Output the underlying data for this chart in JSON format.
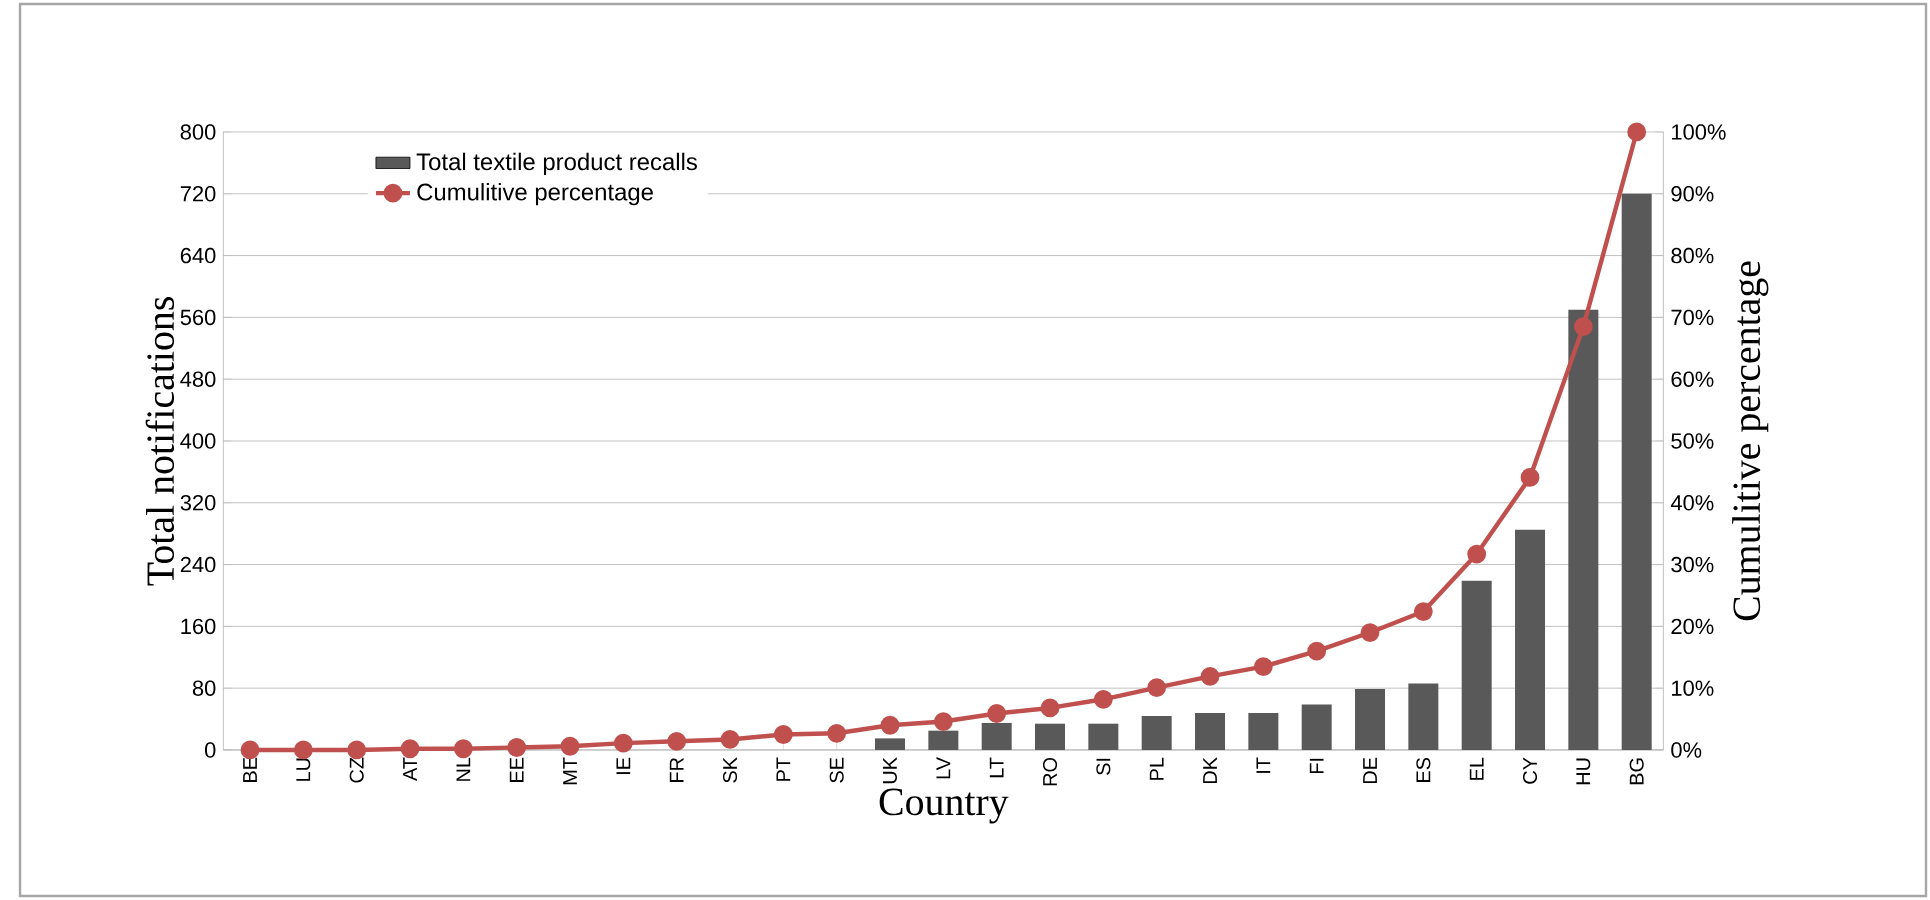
{
  "chart_data": {
    "type": "bar",
    "xlabel": "Country",
    "ylabel": "Total notifications",
    "y2label": "Cumulitive percentage",
    "categories": [
      "BE",
      "LU",
      "CZ",
      "AT",
      "NL",
      "EE",
      "MT",
      "IE",
      "FR",
      "SK",
      "PT",
      "SE",
      "UK",
      "LV",
      "LT",
      "RO",
      "SI",
      "PL",
      "DK",
      "IT",
      "FI",
      "DE",
      "ES",
      "EL",
      "CY",
      "HU",
      "BG"
    ],
    "series": [
      {
        "name": "Total textile product recalls",
        "color": "#595959",
        "values": [
          null,
          null,
          null,
          null,
          null,
          null,
          null,
          null,
          null,
          null,
          null,
          null,
          15,
          25,
          35,
          34,
          34,
          44,
          48,
          48,
          59,
          79,
          86,
          219,
          285,
          570,
          720
        ]
      },
      {
        "name": "Cumulitive percentage",
        "type": "line",
        "axis": "y2",
        "color": "#c0504d",
        "values": [
          0,
          0,
          0,
          0.2,
          0.2,
          0.4,
          0.6,
          1.1,
          1.4,
          1.7,
          2.5,
          2.7,
          4.0,
          4.6,
          5.9,
          6.8,
          8.2,
          10.1,
          11.9,
          13.5,
          16.0,
          19.0,
          22.4,
          31.7,
          44.1,
          68.5,
          100
        ]
      }
    ],
    "ylim": [
      0,
      800
    ],
    "yticks": [
      0,
      80,
      160,
      240,
      320,
      400,
      480,
      560,
      640,
      720,
      800
    ],
    "y2lim": [
      0,
      100
    ],
    "y2ticks": [
      {
        "value": 0,
        "label": "0%"
      },
      {
        "value": 10,
        "label": "10%"
      },
      {
        "value": 20,
        "label": "20%"
      },
      {
        "value": 30,
        "label": "30%"
      },
      {
        "value": 40,
        "label": "40%"
      },
      {
        "value": 50,
        "label": "50%"
      },
      {
        "value": 60,
        "label": "60%"
      },
      {
        "value": 70,
        "label": "70%"
      },
      {
        "value": 80,
        "label": "80%"
      },
      {
        "value": 90,
        "label": "90%"
      },
      {
        "value": 100,
        "label": "100%"
      }
    ],
    "grid": "y",
    "legend": "top left",
    "marker": "circle"
  }
}
